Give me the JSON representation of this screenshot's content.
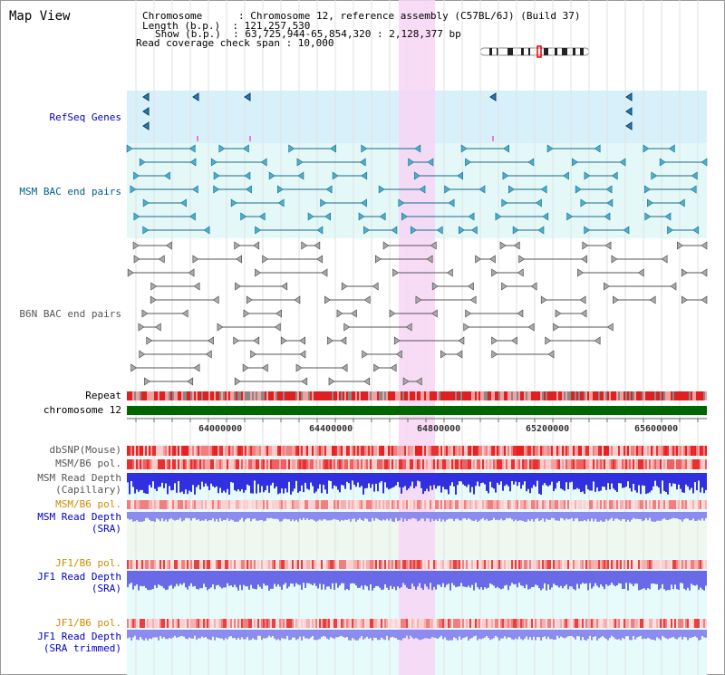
{
  "header": {
    "title": "Map View",
    "chromosome_label": "Chromosome      : Chromosome 12, reference assembly (C57BL/6J) (Build 37)",
    "length_label": "Length (b.p.)  : 121,257,530",
    "show_label": "Show (b.p.)  : 63,725,944-65,854,320 : 2,128,377 bp",
    "coverage_label": "Read coverage check span : 10,000"
  },
  "tracks": {
    "refseq": "RefSeq Genes",
    "msm_bac": "MSM BAC end pairs",
    "b6n_bac": "B6N BAC end pairs",
    "repeat": "Repeat",
    "chromosome": "chromosome 12",
    "dbsnp": "dbSNP(Mouse)",
    "msm_b6_pol": "MSM/B6 pol.",
    "msm_depth_cap_1": "MSM Read Depth",
    "msm_depth_cap_2": "(Capillary)",
    "msm_b6_pol_2": "MSM/B6 pol.",
    "msm_depth_sra_1": "MSM Read Depth",
    "msm_depth_sra_2": "(SRA)",
    "jf1_b6_pol": "JF1/B6 pol.",
    "jf1_depth_sra_1": "JF1 Read Depth",
    "jf1_depth_sra_2": "(SRA)",
    "jf1_b6_pol_2": "JF1/B6 pol.",
    "jf1_depth_trim_1": "JF1 Read Depth",
    "jf1_depth_trim_2": "(SRA trimmed)"
  },
  "axis": {
    "ticks": [
      "64000000",
      "64400000",
      "64800000",
      "65200000",
      "65600000"
    ]
  },
  "colors": {
    "highlight": "#f7d6f4",
    "gene_bg": "#d8f0fa",
    "bac_bg": "#e4f8f8",
    "chromosome": "#006600",
    "repeat": "#e02020",
    "depth": "#3030e0",
    "sra_depth": "#8c8cf0"
  }
}
